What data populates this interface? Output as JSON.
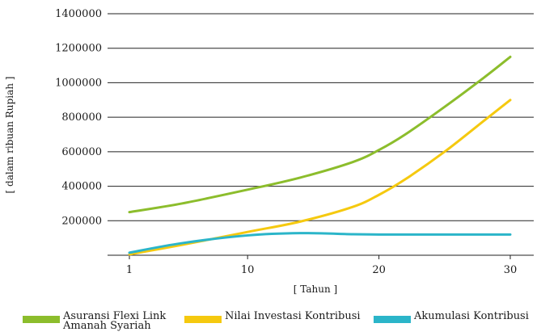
{
  "chart_data": {
    "type": "line",
    "xlabel": "[ Tahun ]",
    "ylabel": "[ dalam ribuan Rupiah ]",
    "x_ticks": [
      "1",
      "10",
      "20",
      "30"
    ],
    "y_ticks": [
      "1400000",
      "1200000",
      "1000000",
      "800000",
      "600000",
      "400000",
      "200000"
    ],
    "xlim": [
      1,
      30
    ],
    "ylim": [
      0,
      1400000
    ],
    "grid": "horizontal",
    "legend_position": "bottom",
    "x": [
      1,
      5,
      10,
      14,
      18,
      20,
      22,
      25,
      28,
      30
    ],
    "series": [
      {
        "name": "Asuransi Flexi Link Amanah Syariah",
        "color": "#8cbd2c",
        "values": [
          250000,
          300000,
          380000,
          450000,
          540000,
          610000,
          700000,
          860000,
          1030000,
          1150000
        ]
      },
      {
        "name": "Nilai Investasi Kontribusi",
        "color": "#f5c90f",
        "values": [
          5000,
          60000,
          135000,
          195000,
          280000,
          350000,
          440000,
          600000,
          780000,
          900000
        ]
      },
      {
        "name": "Akumulasi Kontribusi",
        "color": "#2bb5c9",
        "values": [
          15000,
          70000,
          115000,
          128000,
          122000,
          120000,
          120000,
          120000,
          120000,
          120000
        ]
      }
    ]
  }
}
